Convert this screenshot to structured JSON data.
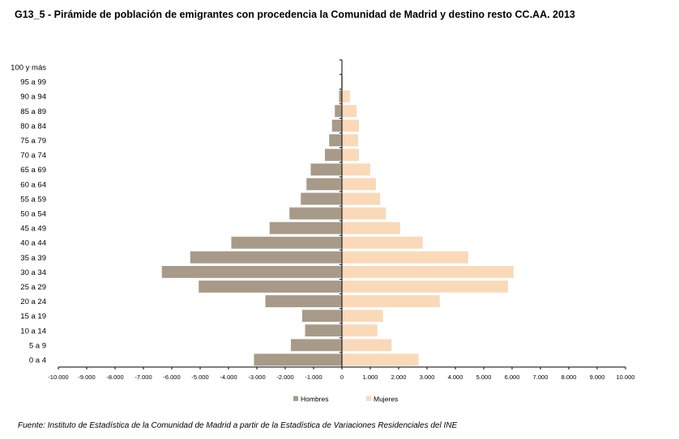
{
  "title": "G13_5 - Pirámide de población de emigrantes con procedencia la Comunidad de Madrid y destino resto CC.AA.  2013",
  "source": "Fuente: Instituto de Estadística de la Comunidad de Madrid a partir de la Estadística de Variaciones Residenciales del  INE",
  "colors": {
    "hombres": "#a89a89",
    "mujeres": "#fad9b9"
  },
  "chart_data": {
    "type": "bar",
    "orientation": "horizontal-pyramid",
    "categories": [
      "0 a 4",
      "5 a 9",
      "10 a 14",
      "15 a 19",
      "20 a 24",
      "25 a 29",
      "30 a 34",
      "35 a 39",
      "40 a 44",
      "45 a 49",
      "50 a 54",
      "55 a 59",
      "60 a 64",
      "65 a 69",
      "70 a 74",
      "75 a 79",
      "80 a 84",
      "85 a 89",
      "90 a 94",
      "95 a 99",
      "100 y más"
    ],
    "series": [
      {
        "name": "Hombres",
        "values": [
          -3100,
          -1800,
          -1300,
          -1400,
          -2700,
          -5050,
          -6350,
          -5350,
          -3900,
          -2550,
          -1850,
          -1450,
          -1250,
          -1100,
          -600,
          -450,
          -350,
          -250,
          -100,
          -20,
          0
        ]
      },
      {
        "name": "Mujeres",
        "values": [
          2700,
          1750,
          1250,
          1450,
          3450,
          5850,
          6050,
          4450,
          2850,
          2050,
          1550,
          1350,
          1200,
          1000,
          600,
          570,
          600,
          520,
          280,
          40,
          0
        ]
      }
    ],
    "x_ticks": [
      "-10.000",
      "-9.000",
      "-8.000",
      "-7.000",
      "-6.000",
      "-5.000",
      "-4.000",
      "-3.000",
      "-2.000",
      "-1.000",
      "0",
      "1.000",
      "2.000",
      "3.000",
      "4.000",
      "5.000",
      "6.000",
      "7.000",
      "8.000",
      "9.000",
      "10.000"
    ],
    "xlim": [
      -10000,
      10000
    ],
    "legend": [
      "Hombres",
      "Mujeres"
    ],
    "legend_position": "bottom",
    "grid": false
  }
}
